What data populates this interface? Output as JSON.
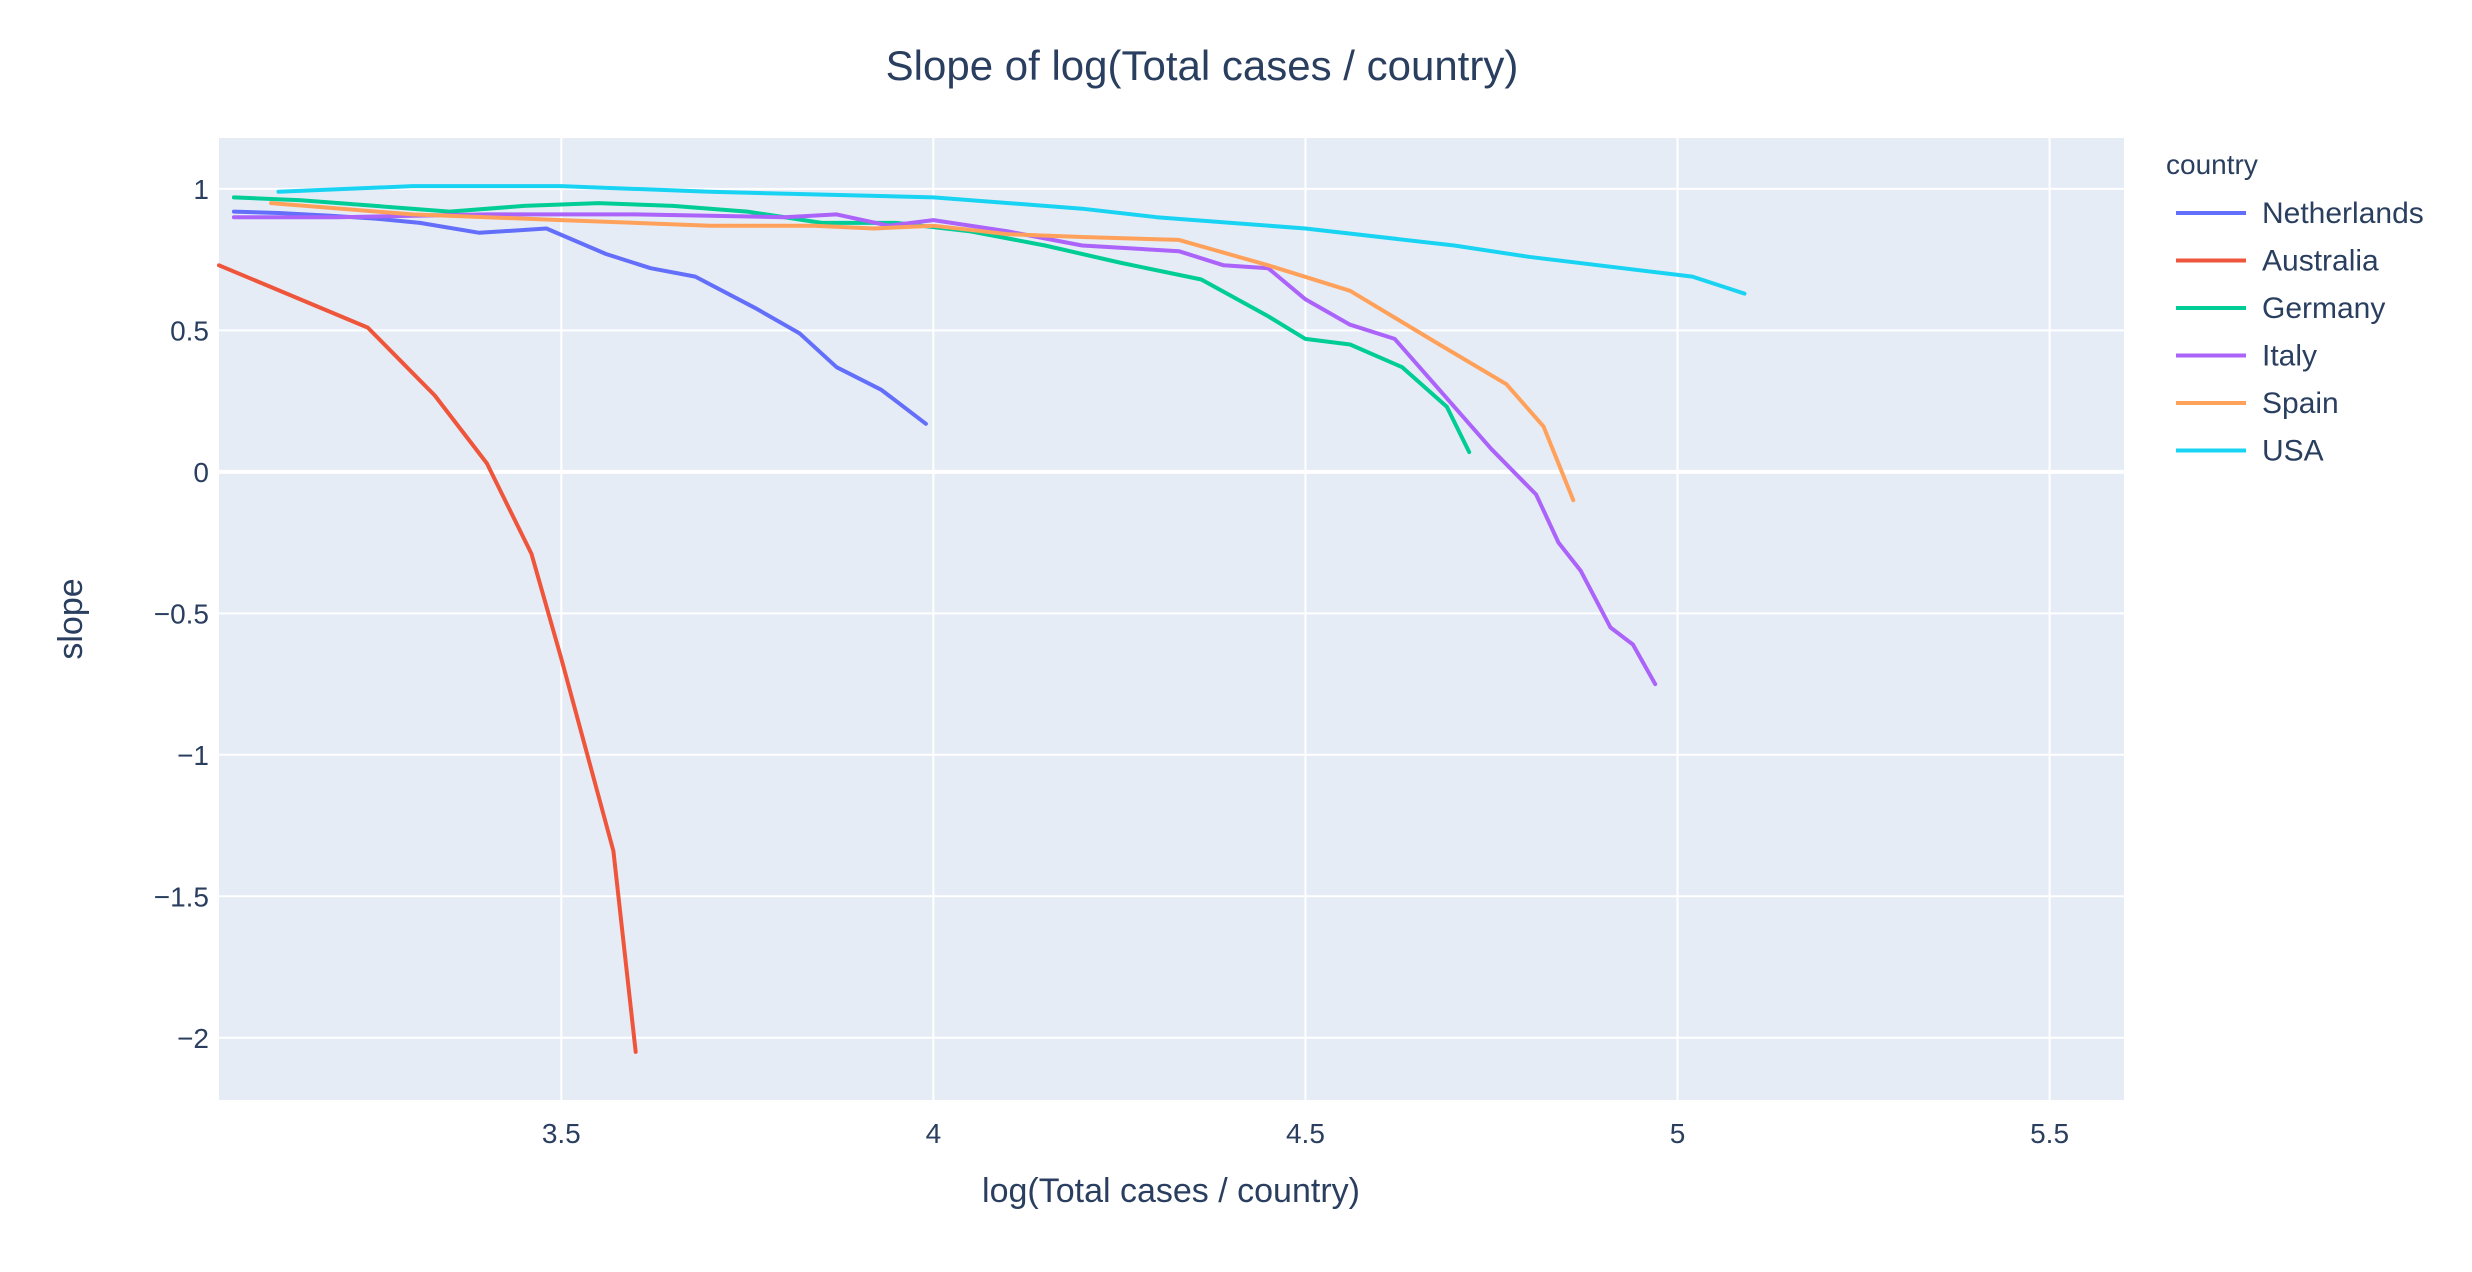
{
  "chart_data": {
    "type": "line",
    "title": "Slope of log(Total cases / country)",
    "xlabel": "log(Total cases / country)",
    "ylabel": "slope",
    "xlim": [
      3.04,
      5.6
    ],
    "ylim": [
      -2.22,
      1.18
    ],
    "x_ticks": [
      3.5,
      4,
      4.5,
      5,
      5.5
    ],
    "x_tick_labels": [
      "3.5",
      "4",
      "4.5",
      "5",
      "5.5"
    ],
    "y_ticks": [
      1,
      0.5,
      0,
      -0.5,
      -1,
      -1.5,
      -2
    ],
    "y_tick_labels": [
      "1",
      "0.5",
      "0",
      "−0.5",
      "−1",
      "−1.5",
      "−2"
    ],
    "grid": true,
    "plot_background": "#e5ecf6",
    "grid_color": "#ffffff",
    "legend": {
      "title": "country",
      "placement": "right"
    },
    "series": [
      {
        "name": "Netherlands",
        "color": "#636efa",
        "x": [
          3.06,
          3.12,
          3.19,
          3.25,
          3.31,
          3.39,
          3.48,
          3.56,
          3.62,
          3.68,
          3.76,
          3.82,
          3.87,
          3.93,
          3.99
        ],
        "y": [
          0.92,
          0.915,
          0.905,
          0.895,
          0.88,
          0.845,
          0.86,
          0.77,
          0.72,
          0.69,
          0.58,
          0.49,
          0.37,
          0.29,
          0.17
        ]
      },
      {
        "name": "Australia",
        "color": "#ef553b",
        "x": [
          3.04,
          3.24,
          3.33,
          3.4,
          3.46,
          3.5,
          3.57,
          3.6
        ],
        "y": [
          0.73,
          0.51,
          0.27,
          0.03,
          -0.29,
          -0.66,
          -1.34,
          -2.05
        ]
      },
      {
        "name": "Germany",
        "color": "#00cc96",
        "x": [
          3.06,
          3.15,
          3.25,
          3.35,
          3.45,
          3.55,
          3.65,
          3.75,
          3.85,
          3.95,
          4.05,
          4.15,
          4.25,
          4.36,
          4.45,
          4.5,
          4.56,
          4.63,
          4.69,
          4.72
        ],
        "y": [
          0.97,
          0.96,
          0.94,
          0.92,
          0.94,
          0.95,
          0.94,
          0.92,
          0.88,
          0.88,
          0.85,
          0.8,
          0.74,
          0.68,
          0.55,
          0.47,
          0.45,
          0.37,
          0.23,
          0.07
        ]
      },
      {
        "name": "Italy",
        "color": "#ab63fa",
        "x": [
          3.06,
          3.2,
          3.4,
          3.6,
          3.8,
          3.87,
          3.94,
          4.0,
          4.1,
          4.2,
          4.33,
          4.39,
          4.45,
          4.5,
          4.56,
          4.62,
          4.68,
          4.75,
          4.81,
          4.84,
          4.87,
          4.91,
          4.94,
          4.97
        ],
        "y": [
          0.9,
          0.9,
          0.91,
          0.91,
          0.9,
          0.91,
          0.87,
          0.89,
          0.85,
          0.8,
          0.78,
          0.73,
          0.72,
          0.61,
          0.52,
          0.47,
          0.29,
          0.08,
          -0.08,
          -0.25,
          -0.35,
          -0.55,
          -0.61,
          -0.75
        ]
      },
      {
        "name": "Spain",
        "color": "#ffa15a",
        "x": [
          3.11,
          3.3,
          3.5,
          3.7,
          3.84,
          3.92,
          4.0,
          4.1,
          4.2,
          4.33,
          4.45,
          4.56,
          4.68,
          4.77,
          4.82,
          4.86
        ],
        "y": [
          0.95,
          0.91,
          0.89,
          0.87,
          0.87,
          0.86,
          0.87,
          0.84,
          0.83,
          0.82,
          0.73,
          0.64,
          0.45,
          0.31,
          0.16,
          -0.1
        ]
      },
      {
        "name": "USA",
        "color": "#19d3f3",
        "x": [
          3.12,
          3.3,
          3.5,
          3.7,
          4.0,
          4.2,
          4.3,
          4.5,
          4.7,
          4.8,
          5.02,
          5.09
        ],
        "y": [
          0.99,
          1.01,
          1.01,
          0.99,
          0.97,
          0.93,
          0.9,
          0.86,
          0.8,
          0.76,
          0.69,
          0.63
        ]
      }
    ]
  }
}
